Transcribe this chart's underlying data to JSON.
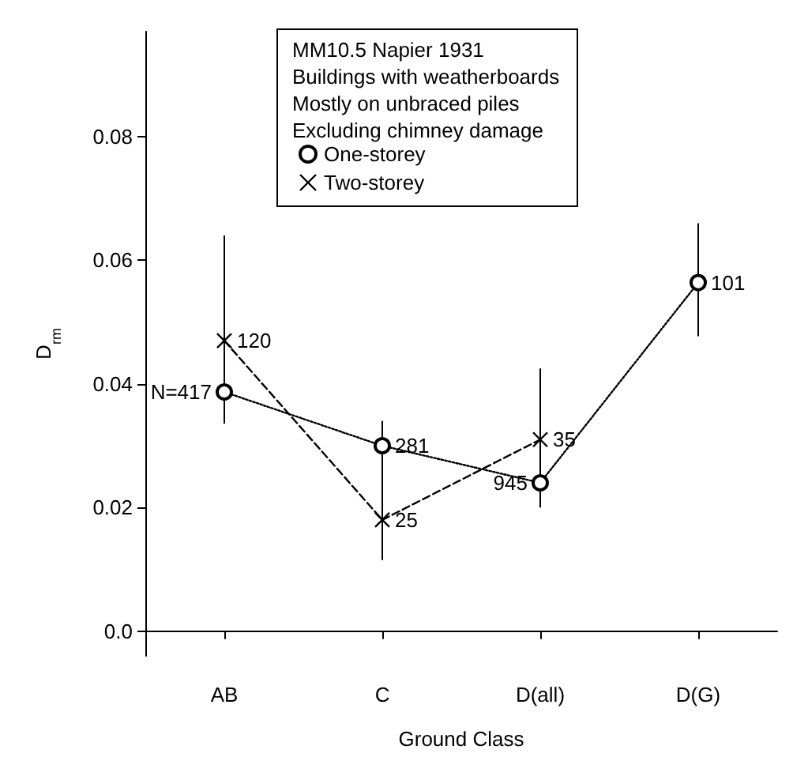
{
  "chart_data": {
    "type": "line",
    "legend_title": "MM10.5 Napier 1931\nBuildings with weatherboards\nMostly on unbraced piles\nExcluding chimney damage",
    "xlabel": "Ground Class",
    "ylabel": "D$_{rm}$",
    "categories": [
      "AB",
      "C",
      "D(all)",
      "D(G)"
    ],
    "series": [
      {
        "name": "One-storey",
        "color": "#000000",
        "marker": "circle",
        "line_style": "dotted",
        "values": [
          0.0387,
          0.03,
          0.024,
          0.0564
        ],
        "errors": [
          [
            0.0336,
            0.046
          ],
          [
            0.026,
            0.034
          ],
          [
            0.022,
            0.026
          ],
          [
            0.0477,
            0.066
          ]
        ]
      },
      {
        "name": "Two-storey",
        "color": "#000000",
        "marker": "cross",
        "line_style": "dashed",
        "values": [
          0.047,
          0.018,
          0.031,
          null
        ],
        "errors": [
          [
            0.035,
            0.064
          ],
          [
            0.0115,
            0.027
          ],
          [
            0.02,
            0.0425
          ],
          null
        ]
      }
    ],
    "annotations": [
      {
        "text": "N=417",
        "x": "AB",
        "y": 0.0387
      },
      {
        "text": "281",
        "x": "C",
        "y": 0.03
      },
      {
        "text": "945",
        "x": "D(all)",
        "y": 0.024
      },
      {
        "text": "101",
        "x": "D(G)",
        "y": 0.0564
      },
      {
        "text": "120",
        "x": "AB",
        "y": 0.047
      },
      {
        "text": "25",
        "x": "C",
        "y": 0.018
      },
      {
        "text": "35",
        "x": "D(all)",
        "y": 0.031
      }
    ],
    "ylim": [
      -0.004,
      0.097
    ],
    "yticks": [
      {
        "value": 0,
        "label": "0.0"
      },
      0.02,
      0.04,
      0.06,
      0.08
    ],
    "legend": "top",
    "grid": false
  }
}
